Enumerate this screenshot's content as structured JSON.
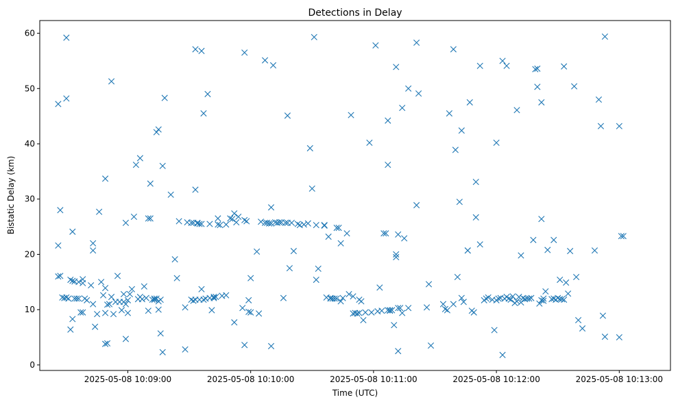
{
  "chart_data": {
    "type": "scatter",
    "title": "Detections in Delay",
    "xlabel": "Time (UTC)",
    "ylabel": "Bistatic Delay (km)",
    "x_ticks": [
      "2025-05-08 10:09:00",
      "2025-05-08 10:10:00",
      "2025-05-08 10:11:00",
      "2025-05-08 10:12:00",
      "2025-05-08 10:13:00"
    ],
    "y_ticks": [
      0,
      10,
      20,
      30,
      40,
      50,
      60
    ],
    "xlim": [
      "2025-05-08 10:08:17",
      "2025-05-08 10:13:25"
    ],
    "ylim": [
      -1,
      62.3
    ],
    "grid": false,
    "marker": "x",
    "color": "#1f77b4",
    "x_unit": "seconds after 2025-05-08 10:09:00",
    "points": [
      [
        -34,
        47.2
      ],
      [
        -34,
        21.6
      ],
      [
        -34,
        16
      ],
      [
        -33,
        28
      ],
      [
        -33,
        16.1
      ],
      [
        -32,
        12.2
      ],
      [
        -31,
        12.1
      ],
      [
        -30,
        59.2
      ],
      [
        -30,
        48.2
      ],
      [
        -30,
        12.2
      ],
      [
        -29,
        12
      ],
      [
        -28,
        15.4
      ],
      [
        -28,
        6.4
      ],
      [
        -27,
        8.3
      ],
      [
        -27,
        24.1
      ],
      [
        -27,
        15.2
      ],
      [
        -26,
        15.1
      ],
      [
        -26,
        12
      ],
      [
        -25,
        12
      ],
      [
        -24,
        15
      ],
      [
        -24,
        12
      ],
      [
        -23,
        9.5
      ],
      [
        -22,
        9.5
      ],
      [
        -22,
        14.8
      ],
      [
        -22,
        15.5
      ],
      [
        -21,
        12
      ],
      [
        -20,
        11.7
      ],
      [
        -18,
        14.4
      ],
      [
        -17,
        22
      ],
      [
        -17,
        20.7
      ],
      [
        -17,
        11
      ],
      [
        -16,
        6.9
      ],
      [
        -15,
        9.2
      ],
      [
        -14,
        27.7
      ],
      [
        -13,
        15
      ],
      [
        -12,
        12.6
      ],
      [
        -11,
        33.7
      ],
      [
        -11,
        3.8
      ],
      [
        -11,
        13.9
      ],
      [
        -11,
        9.4
      ],
      [
        -10,
        10.9
      ],
      [
        -10,
        3.9
      ],
      [
        -9,
        11
      ],
      [
        -8,
        51.3
      ],
      [
        -8,
        12.3
      ],
      [
        -7,
        9.2
      ],
      [
        -6,
        11.4
      ],
      [
        -5,
        16.1
      ],
      [
        -4,
        11.4
      ],
      [
        -3,
        9.9
      ],
      [
        -2,
        11.4
      ],
      [
        -2,
        12.8
      ],
      [
        -1,
        25.7
      ],
      [
        -1,
        4.7
      ],
      [
        -1,
        11
      ],
      [
        0,
        11.7
      ],
      [
        0,
        9.4
      ],
      [
        1,
        12.8
      ],
      [
        2,
        13.7
      ],
      [
        3,
        26.8
      ],
      [
        4,
        36.2
      ],
      [
        5,
        11.9
      ],
      [
        6,
        37.4
      ],
      [
        6,
        12.3
      ],
      [
        7,
        11.9
      ],
      [
        8,
        14.2
      ],
      [
        9,
        12.1
      ],
      [
        10,
        9.8
      ],
      [
        10,
        26.5
      ],
      [
        11,
        26.5
      ],
      [
        11,
        32.8
      ],
      [
        12,
        11.8
      ],
      [
        13,
        12
      ],
      [
        13,
        11.8
      ],
      [
        14,
        42.1
      ],
      [
        14,
        12
      ],
      [
        15,
        42.6
      ],
      [
        15,
        11.5
      ],
      [
        15,
        10
      ],
      [
        16,
        11.8
      ],
      [
        16,
        5.7
      ],
      [
        17,
        36
      ],
      [
        17,
        2.3
      ],
      [
        18,
        48.3
      ],
      [
        21,
        30.8
      ],
      [
        23,
        19.1
      ],
      [
        24,
        15.7
      ],
      [
        25,
        26
      ],
      [
        28,
        2.8
      ],
      [
        28,
        10.4
      ],
      [
        29,
        25.8
      ],
      [
        31,
        11.8
      ],
      [
        31,
        25.7
      ],
      [
        32,
        25.7
      ],
      [
        32,
        11.6
      ],
      [
        33,
        57.1
      ],
      [
        33,
        31.7
      ],
      [
        33,
        11.8
      ],
      [
        34,
        25.7
      ],
      [
        34,
        25.6
      ],
      [
        35,
        11.8
      ],
      [
        35,
        25.5
      ],
      [
        36,
        56.8
      ],
      [
        36,
        25.5
      ],
      [
        36,
        13.7
      ],
      [
        37,
        45.5
      ],
      [
        37,
        11.8
      ],
      [
        38,
        12
      ],
      [
        39,
        49
      ],
      [
        40,
        12.1
      ],
      [
        40,
        25.5
      ],
      [
        41,
        9.9
      ],
      [
        42,
        12.1
      ],
      [
        42,
        12.3
      ],
      [
        43,
        12.3
      ],
      [
        44,
        26.5
      ],
      [
        44,
        25.4
      ],
      [
        45,
        25.3
      ],
      [
        46,
        12.5
      ],
      [
        48,
        25.4
      ],
      [
        48,
        12.6
      ],
      [
        50,
        26.5
      ],
      [
        51,
        26.4
      ],
      [
        52,
        27.4
      ],
      [
        52,
        7.7
      ],
      [
        53,
        25.8
      ],
      [
        54,
        26.8
      ],
      [
        56,
        10.3
      ],
      [
        57,
        3.6
      ],
      [
        57,
        26.2
      ],
      [
        57,
        56.5
      ],
      [
        58,
        26
      ],
      [
        59,
        11.7
      ],
      [
        59,
        9.6
      ],
      [
        60,
        9.5
      ],
      [
        60,
        15.7
      ],
      [
        63,
        20.5
      ],
      [
        64,
        9.3
      ],
      [
        65,
        25.9
      ],
      [
        67,
        55.1
      ],
      [
        67,
        25.7
      ],
      [
        68,
        25.7
      ],
      [
        69,
        25.6
      ],
      [
        70,
        3.4
      ],
      [
        70,
        28.5
      ],
      [
        70,
        25.6
      ],
      [
        71,
        54.2
      ],
      [
        72,
        25.8
      ],
      [
        73,
        25.7
      ],
      [
        74,
        25.8
      ],
      [
        75,
        25.8
      ],
      [
        76,
        12.1
      ],
      [
        77,
        25.7
      ],
      [
        78,
        45.1
      ],
      [
        78,
        25.7
      ],
      [
        79,
        17.5
      ],
      [
        80,
        25.7
      ],
      [
        81,
        20.6
      ],
      [
        83,
        25.5
      ],
      [
        84,
        25.3
      ],
      [
        86,
        25.4
      ],
      [
        88,
        25.6
      ],
      [
        89,
        39.2
      ],
      [
        90,
        31.9
      ],
      [
        91,
        59.3
      ],
      [
        92,
        15.4
      ],
      [
        92,
        25.3
      ],
      [
        93,
        17.4
      ],
      [
        96,
        25.2
      ],
      [
        96,
        25.3
      ],
      [
        97,
        12.2
      ],
      [
        98,
        23.2
      ],
      [
        99,
        12.1
      ],
      [
        99,
        12
      ],
      [
        100,
        12
      ],
      [
        101,
        12
      ],
      [
        102,
        24.8
      ],
      [
        102,
        12
      ],
      [
        103,
        24.8
      ],
      [
        104,
        22
      ],
      [
        104,
        11.5
      ],
      [
        105,
        12.1
      ],
      [
        107,
        23.8
      ],
      [
        108,
        12.8
      ],
      [
        109,
        45.2
      ],
      [
        110,
        9.3
      ],
      [
        110,
        12.4
      ],
      [
        111,
        9.4
      ],
      [
        112,
        9.3
      ],
      [
        113,
        11.8
      ],
      [
        113,
        9.4
      ],
      [
        114,
        11.5
      ],
      [
        115,
        8.1
      ],
      [
        116,
        9.5
      ],
      [
        118,
        40.2
      ],
      [
        119,
        9.5
      ],
      [
        121,
        57.8
      ],
      [
        122,
        9.7
      ],
      [
        123,
        14
      ],
      [
        124,
        9.8
      ],
      [
        125,
        23.8
      ],
      [
        126,
        23.8
      ],
      [
        127,
        9.9
      ],
      [
        127,
        44.2
      ],
      [
        127,
        36.2
      ],
      [
        128,
        9.8
      ],
      [
        128,
        9.9
      ],
      [
        129,
        9.9
      ],
      [
        130,
        7.2
      ],
      [
        131,
        53.9
      ],
      [
        131,
        20
      ],
      [
        131,
        19.5
      ],
      [
        132,
        10.3
      ],
      [
        132,
        2.5
      ],
      [
        132,
        23.6
      ],
      [
        133,
        10.3
      ],
      [
        134,
        46.5
      ],
      [
        134,
        9.4
      ],
      [
        135,
        22.9
      ],
      [
        137,
        50
      ],
      [
        137,
        10.3
      ],
      [
        141,
        58.3
      ],
      [
        141,
        28.9
      ],
      [
        142,
        49.1
      ],
      [
        146,
        10.4
      ],
      [
        147,
        14.6
      ],
      [
        148,
        3.5
      ],
      [
        154,
        11
      ],
      [
        155,
        10.1
      ],
      [
        156,
        9.9
      ],
      [
        157,
        45.5
      ],
      [
        159,
        11
      ],
      [
        159,
        57.1
      ],
      [
        160,
        38.9
      ],
      [
        161,
        15.9
      ],
      [
        162,
        29.5
      ],
      [
        163,
        42.4
      ],
      [
        163,
        12.1
      ],
      [
        164,
        11.4
      ],
      [
        166,
        20.7
      ],
      [
        166,
        20.7
      ],
      [
        167,
        47.5
      ],
      [
        168,
        9.8
      ],
      [
        169,
        9.5
      ],
      [
        170,
        33.1
      ],
      [
        170,
        26.7
      ],
      [
        172,
        54.1
      ],
      [
        172,
        21.8
      ],
      [
        174,
        11.7
      ],
      [
        175,
        12
      ],
      [
        176,
        12.2
      ],
      [
        178,
        11.8
      ],
      [
        179,
        6.3
      ],
      [
        180,
        40.2
      ],
      [
        180,
        11.7
      ],
      [
        181,
        12
      ],
      [
        182,
        12.1
      ],
      [
        183,
        55
      ],
      [
        183,
        1.8
      ],
      [
        184,
        12
      ],
      [
        185,
        54.1
      ],
      [
        185,
        12.3
      ],
      [
        186,
        12
      ],
      [
        187,
        11.8
      ],
      [
        188,
        12.4
      ],
      [
        189,
        11.2
      ],
      [
        190,
        46.1
      ],
      [
        190,
        11.5
      ],
      [
        191,
        12.3
      ],
      [
        192,
        19.8
      ],
      [
        192,
        11.3
      ],
      [
        193,
        12.1
      ],
      [
        194,
        11.9
      ],
      [
        195,
        12
      ],
      [
        196,
        12
      ],
      [
        197,
        12.1
      ],
      [
        198,
        22.6
      ],
      [
        199,
        53.5
      ],
      [
        200,
        53.6
      ],
      [
        200,
        50.3
      ],
      [
        201,
        11.1
      ],
      [
        202,
        11.7
      ],
      [
        202,
        26.4
      ],
      [
        202,
        47.5
      ],
      [
        203,
        11.6
      ],
      [
        203,
        12
      ],
      [
        204,
        13.3
      ],
      [
        205,
        20.8
      ],
      [
        207,
        11.9
      ],
      [
        208,
        12
      ],
      [
        208,
        22.6
      ],
      [
        209,
        11.8
      ],
      [
        210,
        12.1
      ],
      [
        211,
        11.9
      ],
      [
        211,
        15.4
      ],
      [
        212,
        11.9
      ],
      [
        213,
        11.8
      ],
      [
        213,
        54
      ],
      [
        214,
        14.9
      ],
      [
        215,
        12.9
      ],
      [
        216,
        20.6
      ],
      [
        218,
        50.4
      ],
      [
        219,
        15.9
      ],
      [
        220,
        8.1
      ],
      [
        222,
        6.6
      ],
      [
        228,
        20.7
      ],
      [
        230,
        48
      ],
      [
        231,
        43.2
      ],
      [
        232,
        8.9
      ],
      [
        233,
        5.1
      ],
      [
        233,
        59.4
      ],
      [
        240,
        43.2
      ],
      [
        240,
        5
      ],
      [
        241,
        23.3
      ],
      [
        242,
        23.3
      ]
    ]
  }
}
